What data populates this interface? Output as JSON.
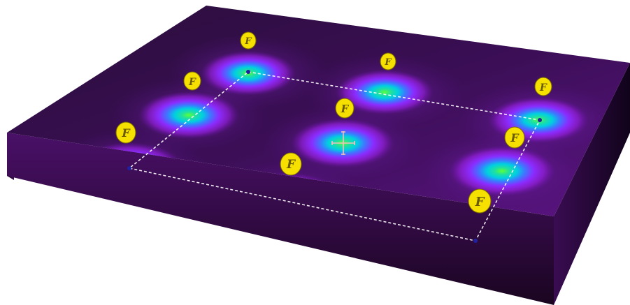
{
  "figure": {
    "type": "3D electron density slab rendering",
    "colors": {
      "background": "#ffffff",
      "slab_dark": "#1a0a24",
      "slab_mid": "#4a1068",
      "glow_outer": "#a020f0",
      "glow_mid": "#6060ff",
      "glow_inner": "#00e0e0",
      "glow_core": "#40ff40",
      "label_fill": "#f5e000",
      "label_outline": "#7a6a00",
      "unit_cell_line": "#ffffff",
      "lattice_point": "#2020a0",
      "crosshair": "#f0c0c0"
    }
  },
  "atom_labels": [
    {
      "id": "atom-1",
      "text": "F"
    },
    {
      "id": "atom-2",
      "text": "F"
    },
    {
      "id": "atom-3",
      "text": "F"
    },
    {
      "id": "atom-4",
      "text": "F"
    },
    {
      "id": "atom-5",
      "text": "F"
    },
    {
      "id": "atom-6",
      "text": "F"
    },
    {
      "id": "atom-7",
      "text": "F"
    },
    {
      "id": "atom-8",
      "text": "F"
    },
    {
      "id": "atom-9",
      "text": "F"
    }
  ]
}
